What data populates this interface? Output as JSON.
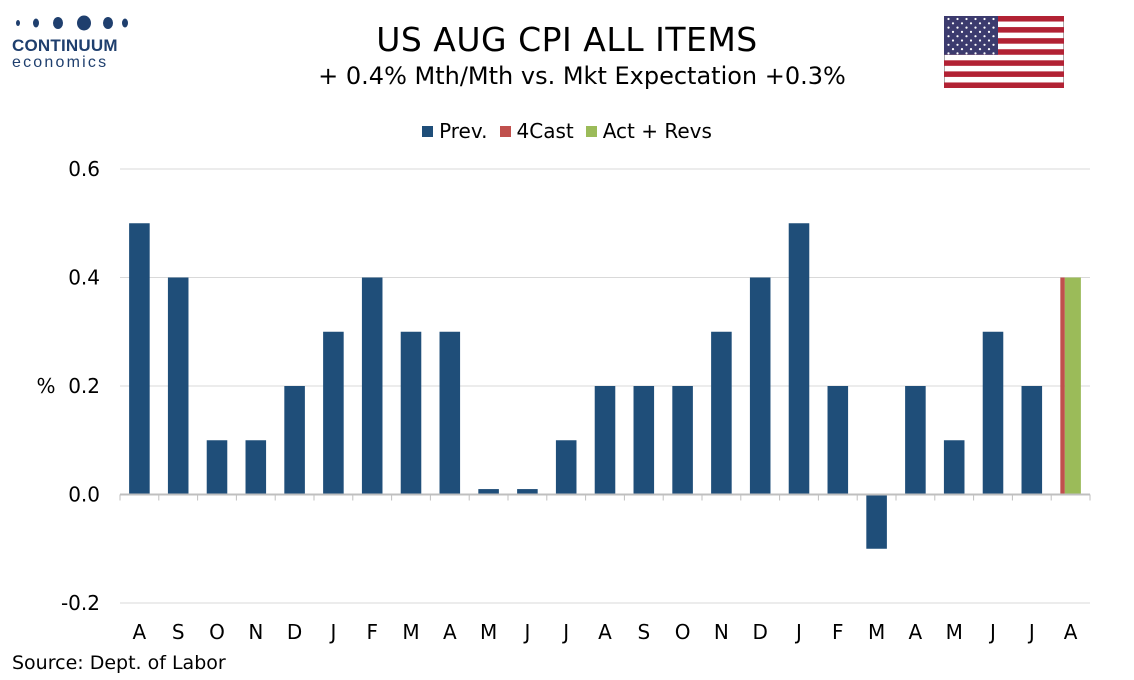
{
  "branding": {
    "logo_name": "CONTINUUM",
    "logo_sub": "economics",
    "logo_color": "#1f3f6e"
  },
  "header": {
    "title": "US AUG CPI ALL ITEMS",
    "subtitle": "+ 0.4% Mth/Mth  vs. Mkt Expectation +0.3%",
    "flag_icon": "us-flag-icon"
  },
  "footer": {
    "source": "Source: Dept. of Labor"
  },
  "chart_data": {
    "type": "bar",
    "title": "US AUG CPI ALL ITEMS",
    "subtitle": "+ 0.4% Mth/Mth  vs. Mkt Expectation +0.3%",
    "xlabel": "",
    "ylabel": "%",
    "ylim": [
      -0.2,
      0.6
    ],
    "yticks": [
      -0.2,
      0.0,
      0.2,
      0.4,
      0.6
    ],
    "ytick_labels": [
      "-0.2",
      "0.0",
      "0.2",
      "0.4",
      "0.6"
    ],
    "grid": true,
    "legend_position": "top-center",
    "categories": [
      "A",
      "S",
      "O",
      "N",
      "D",
      "J",
      "F",
      "M",
      "A",
      "M",
      "J",
      "J",
      "A",
      "S",
      "O",
      "N",
      "D",
      "J",
      "F",
      "M",
      "A",
      "M",
      "J",
      "J",
      "A"
    ],
    "series": [
      {
        "name": "Prev.",
        "color": "#1f4e79",
        "values": [
          0.5,
          0.4,
          0.1,
          0.1,
          0.2,
          0.3,
          0.4,
          0.3,
          0.3,
          0.01,
          0.01,
          0.1,
          0.2,
          0.2,
          0.2,
          0.3,
          0.4,
          0.5,
          0.2,
          -0.1,
          0.2,
          0.1,
          0.3,
          0.2,
          null
        ]
      },
      {
        "name": "4Cast",
        "color": "#c0504d",
        "values": [
          null,
          null,
          null,
          null,
          null,
          null,
          null,
          null,
          null,
          null,
          null,
          null,
          null,
          null,
          null,
          null,
          null,
          null,
          null,
          null,
          null,
          null,
          null,
          null,
          0.4
        ]
      },
      {
        "name": "Act + Revs",
        "color": "#9bbb59",
        "values": [
          null,
          null,
          null,
          null,
          null,
          null,
          null,
          null,
          null,
          null,
          null,
          null,
          null,
          null,
          null,
          null,
          null,
          null,
          null,
          null,
          null,
          null,
          null,
          null,
          0.4
        ]
      }
    ]
  }
}
